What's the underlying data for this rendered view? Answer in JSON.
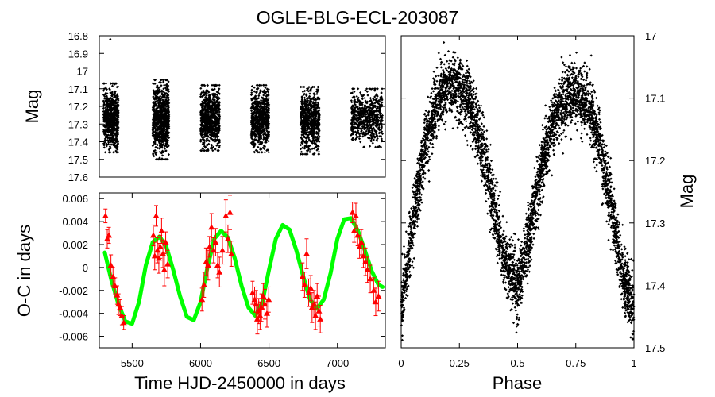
{
  "title": "OGLE-BLG-ECL-203087",
  "chart_data": [
    {
      "panel": "light-curve-time",
      "type": "scatter",
      "ylabel": "Mag",
      "ylim": [
        17.6,
        16.8
      ],
      "y_inverted": true,
      "xlim": [
        5260,
        7350
      ],
      "yticks": [
        "16.8",
        "16.9",
        "17",
        "17.1",
        "17.2",
        "17.3",
        "17.4",
        "17.5",
        "17.6"
      ],
      "series": [
        {
          "name": "observations",
          "marker": "diamond",
          "color": "#000000",
          "seasons": [
            {
              "t_start": 5290,
              "t_end": 5400,
              "mag_min": 17.07,
              "mag_max": 17.46,
              "n_points": 700
            },
            {
              "t_start": 5650,
              "t_end": 5770,
              "mag_min": 17.05,
              "mag_max": 17.5,
              "n_points": 850
            },
            {
              "t_start": 6000,
              "t_end": 6140,
              "mag_min": 17.08,
              "mag_max": 17.45,
              "n_points": 800
            },
            {
              "t_start": 6370,
              "t_end": 6500,
              "mag_min": 17.08,
              "mag_max": 17.46,
              "n_points": 700
            },
            {
              "t_start": 6730,
              "t_end": 6870,
              "mag_min": 17.09,
              "mag_max": 17.47,
              "n_points": 700
            },
            {
              "t_start": 7100,
              "t_end": 7330,
              "mag_min": 17.1,
              "mag_max": 17.43,
              "n_points": 650
            }
          ],
          "outliers": [
            {
              "t": 5340,
              "mag": 16.82
            }
          ]
        }
      ]
    },
    {
      "panel": "o-c-diagram",
      "type": "scatter",
      "xlabel": "Time HJD-2450000 in days",
      "ylabel": "O-C in days",
      "xlim": [
        5260,
        7350
      ],
      "ylim": [
        -0.007,
        0.0065
      ],
      "xticks": [
        "5500",
        "6000",
        "6500",
        "7000"
      ],
      "yticks": [
        "0.006",
        "0.004",
        "0.002",
        "0",
        "-0.002",
        "-0.004",
        "-0.006"
      ],
      "series": [
        {
          "name": "O-C measurements",
          "marker": "triangle",
          "color": "#ff0000",
          "error_bars": true,
          "points": [
            {
              "t": 5305,
              "oc": 0.0045,
              "err": 0.0006
            },
            {
              "t": 5318,
              "oc": 0.0025,
              "err": 0.0008
            },
            {
              "t": 5330,
              "oc": 0.0028,
              "err": 0.0007
            },
            {
              "t": 5345,
              "oc": 0.0002,
              "err": 0.0009
            },
            {
              "t": 5360,
              "oc": -0.0008,
              "err": 0.0008
            },
            {
              "t": 5375,
              "oc": -0.0016,
              "err": 0.0007
            },
            {
              "t": 5390,
              "oc": -0.0024,
              "err": 0.0008
            },
            {
              "t": 5400,
              "oc": -0.0032,
              "err": 0.0009
            },
            {
              "t": 5412,
              "oc": -0.0035,
              "err": 0.0007
            },
            {
              "t": 5425,
              "oc": -0.0042,
              "err": 0.0008
            },
            {
              "t": 5438,
              "oc": -0.0048,
              "err": 0.0006
            },
            {
              "t": 5655,
              "oc": 0.0028,
              "err": 0.0009
            },
            {
              "t": 5665,
              "oc": 0.001,
              "err": 0.0012
            },
            {
              "t": 5675,
              "oc": 0.0045,
              "err": 0.0009
            },
            {
              "t": 5685,
              "oc": 0.0015,
              "err": 0.0011
            },
            {
              "t": 5695,
              "oc": 0.0008,
              "err": 0.0013
            },
            {
              "t": 5705,
              "oc": 0.0018,
              "err": 0.001
            },
            {
              "t": 5715,
              "oc": 0.0032,
              "err": 0.0011
            },
            {
              "t": 5725,
              "oc": 0.0012,
              "err": 0.0012
            },
            {
              "t": 5735,
              "oc": -0.0002,
              "err": 0.0014
            },
            {
              "t": 5745,
              "oc": 0.0022,
              "err": 0.0009
            },
            {
              "t": 5760,
              "oc": 0.0003,
              "err": 0.0012
            },
            {
              "t": 6010,
              "oc": -0.0028,
              "err": 0.001
            },
            {
              "t": 6025,
              "oc": -0.0015,
              "err": 0.0011
            },
            {
              "t": 6040,
              "oc": 0.0005,
              "err": 0.0012
            },
            {
              "t": 6055,
              "oc": 0.0002,
              "err": 0.0013
            },
            {
              "t": 6065,
              "oc": 0.0018,
              "err": 0.0009
            },
            {
              "t": 6080,
              "oc": 0.0035,
              "err": 0.0012
            },
            {
              "t": 6095,
              "oc": 0.0015,
              "err": 0.0011
            },
            {
              "t": 6110,
              "oc": 0.0022,
              "err": 0.0012
            },
            {
              "t": 6125,
              "oc": 0.0002,
              "err": 0.0011
            },
            {
              "t": 6138,
              "oc": -0.0004,
              "err": 0.0013
            },
            {
              "t": 6160,
              "oc": 0.0015,
              "err": 0.0012
            },
            {
              "t": 6185,
              "oc": 0.0045,
              "err": 0.0014
            },
            {
              "t": 6200,
              "oc": 0.0025,
              "err": 0.0012
            },
            {
              "t": 6215,
              "oc": 0.0048,
              "err": 0.0015
            },
            {
              "t": 6225,
              "oc": 0.0012,
              "err": 0.0011
            },
            {
              "t": 6380,
              "oc": -0.0022,
              "err": 0.001
            },
            {
              "t": 6395,
              "oc": -0.0028,
              "err": 0.0011
            },
            {
              "t": 6405,
              "oc": -0.0032,
              "err": 0.0012
            },
            {
              "t": 6415,
              "oc": -0.0045,
              "err": 0.0013
            },
            {
              "t": 6425,
              "oc": -0.0038,
              "err": 0.0011
            },
            {
              "t": 6435,
              "oc": -0.0042,
              "err": 0.0012
            },
            {
              "t": 6445,
              "oc": -0.0035,
              "err": 0.0012
            },
            {
              "t": 6458,
              "oc": -0.0025,
              "err": 0.0011
            },
            {
              "t": 6470,
              "oc": -0.0032,
              "err": 0.0013
            },
            {
              "t": 6485,
              "oc": -0.004,
              "err": 0.0012
            },
            {
              "t": 6498,
              "oc": -0.0028,
              "err": 0.0011
            },
            {
              "t": 6745,
              "oc": -0.0008,
              "err": 0.0012
            },
            {
              "t": 6760,
              "oc": -0.0015,
              "err": 0.0011
            },
            {
              "t": 6775,
              "oc": 0.0012,
              "err": 0.0013
            },
            {
              "t": 6790,
              "oc": -0.0022,
              "err": 0.0012
            },
            {
              "t": 6805,
              "oc": -0.0018,
              "err": 0.0011
            },
            {
              "t": 6815,
              "oc": -0.0035,
              "err": 0.0013
            },
            {
              "t": 6828,
              "oc": -0.0032,
              "err": 0.0012
            },
            {
              "t": 6840,
              "oc": -0.0042,
              "err": 0.0012
            },
            {
              "t": 6852,
              "oc": -0.0025,
              "err": 0.0011
            },
            {
              "t": 6865,
              "oc": -0.0038,
              "err": 0.0013
            },
            {
              "t": 6875,
              "oc": -0.0045,
              "err": 0.0012
            },
            {
              "t": 7110,
              "oc": 0.0048,
              "err": 0.0009
            },
            {
              "t": 7122,
              "oc": 0.0032,
              "err": 0.001
            },
            {
              "t": 7135,
              "oc": 0.0045,
              "err": 0.0011
            },
            {
              "t": 7148,
              "oc": 0.0028,
              "err": 0.0009
            },
            {
              "t": 7162,
              "oc": 0.0018,
              "err": 0.001
            },
            {
              "t": 7175,
              "oc": 0.0022,
              "err": 0.0011
            },
            {
              "t": 7190,
              "oc": 0.001,
              "err": 0.001
            },
            {
              "t": 7205,
              "oc": 0.0005,
              "err": 0.0012
            },
            {
              "t": 7220,
              "oc": -0.0002,
              "err": 0.0011
            },
            {
              "t": 7240,
              "oc": -0.001,
              "err": 0.0012
            },
            {
              "t": 7265,
              "oc": -0.002,
              "err": 0.0011
            },
            {
              "t": 7280,
              "oc": -0.003,
              "err": 0.0012
            },
            {
              "t": 7300,
              "oc": -0.0025,
              "err": 0.0013
            }
          ]
        },
        {
          "name": "LTTE fit",
          "type": "line",
          "color": "#00ff00",
          "x": [
            5300,
            5350,
            5400,
            5450,
            5500,
            5550,
            5600,
            5650,
            5700,
            5750,
            5800,
            5850,
            5900,
            5950,
            6000,
            6050,
            6100,
            6150,
            6200,
            6250,
            6300,
            6350,
            6400,
            6450,
            6500,
            6550,
            6600,
            6650,
            6700,
            6750,
            6800,
            6850,
            6900,
            6950,
            7000,
            7050,
            7100,
            7150,
            7200,
            7250,
            7300,
            7330
          ],
          "y": [
            0.0013,
            -0.0012,
            -0.0032,
            -0.0047,
            -0.0049,
            -0.003,
            0.0002,
            0.0022,
            0.0027,
            0.0018,
            -0.0002,
            -0.0025,
            -0.0043,
            -0.0046,
            -0.003,
            0.0,
            0.0025,
            0.0032,
            0.0026,
            0.0008,
            -0.0016,
            -0.0035,
            -0.0042,
            -0.0031,
            -0.0002,
            0.0025,
            0.0037,
            0.0033,
            0.0015,
            -0.0008,
            -0.0028,
            -0.0036,
            -0.0028,
            -0.0005,
            0.0025,
            0.0042,
            0.0043,
            0.0032,
            0.0015,
            -0.0003,
            -0.0015,
            -0.0017
          ]
        }
      ]
    },
    {
      "panel": "phased-light-curve",
      "type": "scatter",
      "xlabel": "Phase",
      "ylabel": "Mag",
      "xlim": [
        0,
        1
      ],
      "ylim": [
        17.5,
        17.0
      ],
      "y_inverted": true,
      "xticks": [
        "0",
        "0.25",
        "0.5",
        "0.75",
        "1"
      ],
      "yticks": [
        "17",
        "17.1",
        "17.2",
        "17.3",
        "17.4",
        "17.5"
      ],
      "series": [
        {
          "name": "phased observations",
          "marker": "diamond",
          "color": "#000000",
          "model": {
            "phase": [
              0.0,
              0.05,
              0.1,
              0.15,
              0.2,
              0.25,
              0.3,
              0.35,
              0.4,
              0.45,
              0.5,
              0.55,
              0.6,
              0.65,
              0.7,
              0.75,
              0.8,
              0.85,
              0.9,
              0.95,
              1.0
            ],
            "mag": [
              17.44,
              17.3,
              17.18,
              17.11,
              17.08,
              17.08,
              17.11,
              17.18,
              17.28,
              17.37,
              17.4,
              17.32,
              17.22,
              17.14,
              17.1,
              17.09,
              17.11,
              17.17,
              17.27,
              17.38,
              17.44
            ]
          },
          "scatter_mag": 0.05,
          "n_points": 4500
        }
      ]
    }
  ]
}
